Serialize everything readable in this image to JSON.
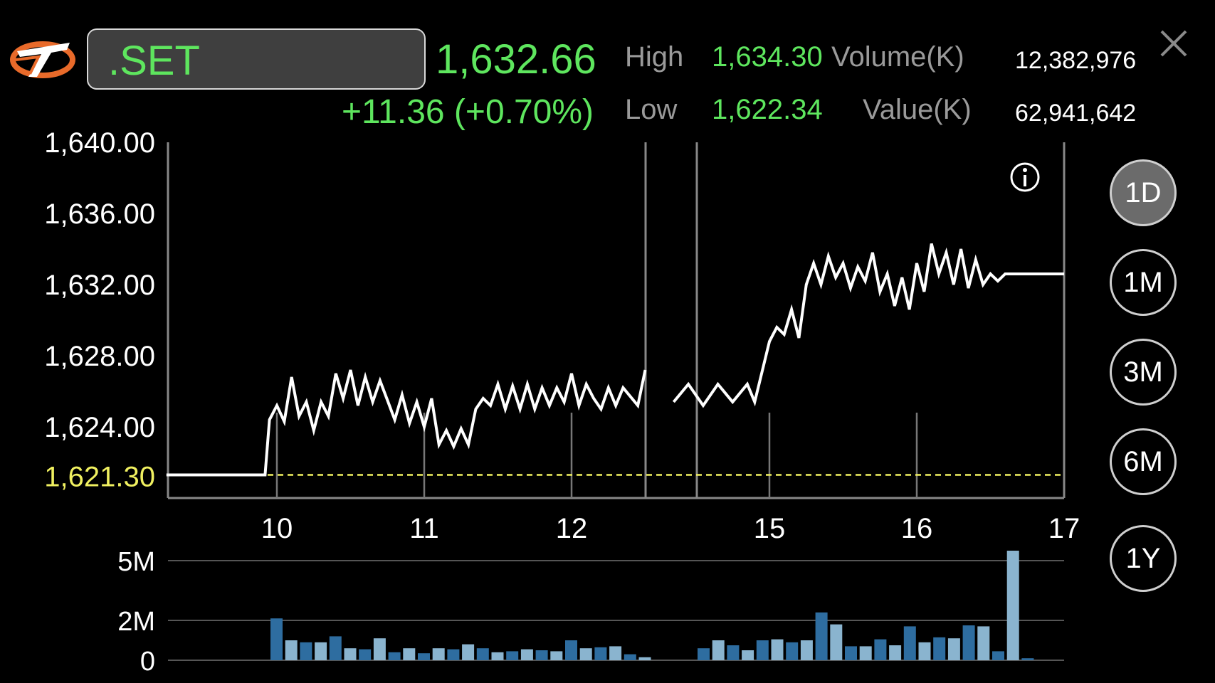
{
  "quote": {
    "symbol": ".SET",
    "last": "1,632.66",
    "change": "+11.36 (+0.70%)",
    "high_label": "High",
    "high": "1,634.30",
    "low_label": "Low",
    "low": "1,622.34",
    "volume_label": "Volume(K)",
    "volume": "12,382,976",
    "value_label": "Value(K)",
    "value": "62,941,642"
  },
  "periods": [
    "1D",
    "1M",
    "3M",
    "6M",
    "1Y"
  ],
  "active_period": "1D",
  "colors": {
    "up": "#5ee65e",
    "prev_close": "#f0f060",
    "volume_dark": "#2e6da0",
    "volume_light": "#8ab4cf"
  },
  "chart_data": [
    {
      "type": "line",
      "x_ticks": [
        "10",
        "11",
        "12",
        "15",
        "16",
        "17"
      ],
      "y_ticks": [
        "1,640.00",
        "1,636.00",
        "1,632.00",
        "1,628.00",
        "1,624.00"
      ],
      "ylim": [
        1620.0,
        1640.0
      ],
      "prev_close": 1621.3,
      "prev_close_label": "1,621.30",
      "x_range": [
        9.25,
        17.0
      ],
      "segments": [
        {
          "x": [
            9.25,
            9.92,
            9.95,
            10.0,
            10.05,
            10.1,
            10.15,
            10.2,
            10.25,
            10.3,
            10.35,
            10.4,
            10.45,
            10.5,
            10.55,
            10.6,
            10.65,
            10.7,
            10.75,
            10.8,
            10.85,
            10.9,
            10.95,
            11.0,
            11.05,
            11.1,
            11.15,
            11.2,
            11.25,
            11.3,
            11.35,
            11.4,
            11.45,
            11.5,
            11.55,
            11.6,
            11.65,
            11.7,
            11.75,
            11.8,
            11.85,
            11.9,
            11.95,
            12.0,
            12.05,
            12.1,
            12.15,
            12.2,
            12.25,
            12.3,
            12.35,
            12.45,
            12.5
          ],
          "y": [
            1621.3,
            1621.3,
            1624.4,
            1625.2,
            1624.3,
            1626.8,
            1624.6,
            1625.4,
            1623.8,
            1625.4,
            1624.6,
            1627.0,
            1625.6,
            1627.2,
            1625.2,
            1626.8,
            1625.4,
            1626.6,
            1625.5,
            1624.4,
            1625.8,
            1624.2,
            1625.4,
            1624.0,
            1625.6,
            1623.0,
            1623.8,
            1622.9,
            1623.9,
            1623.0,
            1625.0,
            1625.6,
            1625.2,
            1626.4,
            1625.0,
            1626.3,
            1625.0,
            1626.4,
            1625.0,
            1626.2,
            1625.2,
            1626.2,
            1625.4,
            1627.0,
            1625.2,
            1626.4,
            1625.6,
            1625.0,
            1626.2,
            1625.2,
            1626.2,
            1625.2,
            1627.2
          ]
        },
        {
          "x": [
            14.35,
            14.45,
            14.55,
            14.65,
            14.75,
            14.85,
            14.9,
            15.0,
            15.05,
            15.1,
            15.15,
            15.2,
            15.25,
            15.3,
            15.35,
            15.4,
            15.45,
            15.5,
            15.55,
            15.6,
            15.65,
            15.7,
            15.75,
            15.8,
            15.85,
            15.9,
            15.95,
            16.0,
            16.05,
            16.1,
            16.15,
            16.2,
            16.25,
            16.3,
            16.35,
            16.4,
            16.45,
            16.5,
            16.55,
            16.6,
            17.0
          ],
          "y": [
            1625.4,
            1626.4,
            1625.2,
            1626.4,
            1625.4,
            1626.4,
            1625.4,
            1628.8,
            1629.6,
            1629.2,
            1630.6,
            1629.0,
            1632.0,
            1633.2,
            1632.0,
            1633.6,
            1632.4,
            1633.2,
            1631.8,
            1633.0,
            1632.2,
            1633.8,
            1631.6,
            1632.6,
            1630.8,
            1632.4,
            1630.6,
            1633.2,
            1631.6,
            1634.3,
            1632.6,
            1633.8,
            1632.0,
            1634.0,
            1631.8,
            1633.4,
            1632.0,
            1632.6,
            1632.2,
            1632.6,
            1632.6
          ]
        }
      ]
    },
    {
      "type": "bar",
      "y_ticks": [
        "5M",
        "2M",
        "0"
      ],
      "ylim": [
        0,
        6.0
      ],
      "bars_a": [
        2.1,
        1.0,
        0.9,
        0.9,
        1.2,
        0.6,
        0.55,
        1.1,
        0.4,
        0.6,
        0.35,
        0.6,
        0.55,
        0.8,
        0.6,
        0.4,
        0.45,
        0.55,
        0.5,
        0.45,
        1.0,
        0.6,
        0.65,
        0.7,
        0.3,
        0.15
      ],
      "bars_b": [
        0.6,
        1.0,
        0.75,
        0.5,
        1.0,
        1.05,
        0.9,
        1.0,
        2.4,
        1.8,
        0.7,
        0.7,
        1.05,
        0.75,
        1.7,
        0.9,
        1.15,
        1.1,
        1.75,
        1.7,
        0.45,
        5.5,
        0.1
      ]
    }
  ]
}
